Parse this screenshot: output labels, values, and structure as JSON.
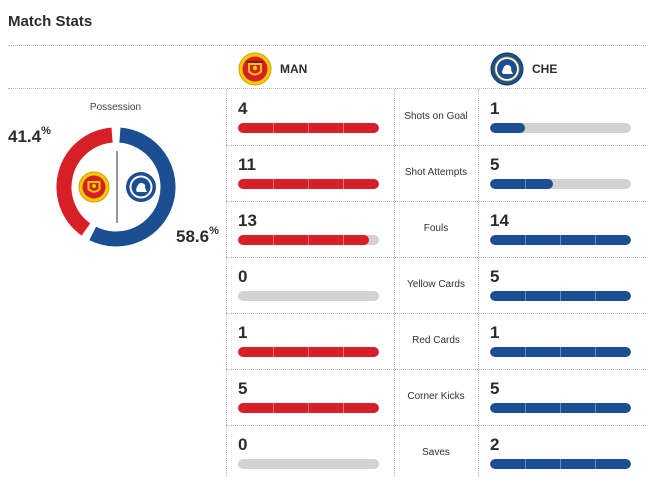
{
  "header": {
    "title": "Match Stats"
  },
  "teams": {
    "home": {
      "abbr": "MAN",
      "crest_icon": "man-utd-crest-icon",
      "color": "#d61f26"
    },
    "away": {
      "abbr": "CHE",
      "crest_icon": "chelsea-crest-icon",
      "color": "#1c4e92"
    }
  },
  "possession": {
    "label": "Possession",
    "home_value": "41.4",
    "away_value": "58.6",
    "unit": "%",
    "home_fraction": 0.414,
    "away_fraction": 0.586
  },
  "stats": [
    {
      "label": "Shots on Goal",
      "home": "4",
      "away": "1",
      "home_fill": 1.0,
      "away_fill": 0.25
    },
    {
      "label": "Shot Attempts",
      "home": "11",
      "away": "5",
      "home_fill": 1.0,
      "away_fill": 0.45
    },
    {
      "label": "Fouls",
      "home": "13",
      "away": "14",
      "home_fill": 0.93,
      "away_fill": 1.0
    },
    {
      "label": "Yellow Cards",
      "home": "0",
      "away": "5",
      "home_fill": 0.0,
      "away_fill": 1.0
    },
    {
      "label": "Red Cards",
      "home": "1",
      "away": "1",
      "home_fill": 1.0,
      "away_fill": 1.0
    },
    {
      "label": "Corner Kicks",
      "home": "5",
      "away": "5",
      "home_fill": 1.0,
      "away_fill": 1.0
    },
    {
      "label": "Saves",
      "home": "0",
      "away": "2",
      "home_fill": 0.0,
      "away_fill": 1.0
    }
  ]
}
